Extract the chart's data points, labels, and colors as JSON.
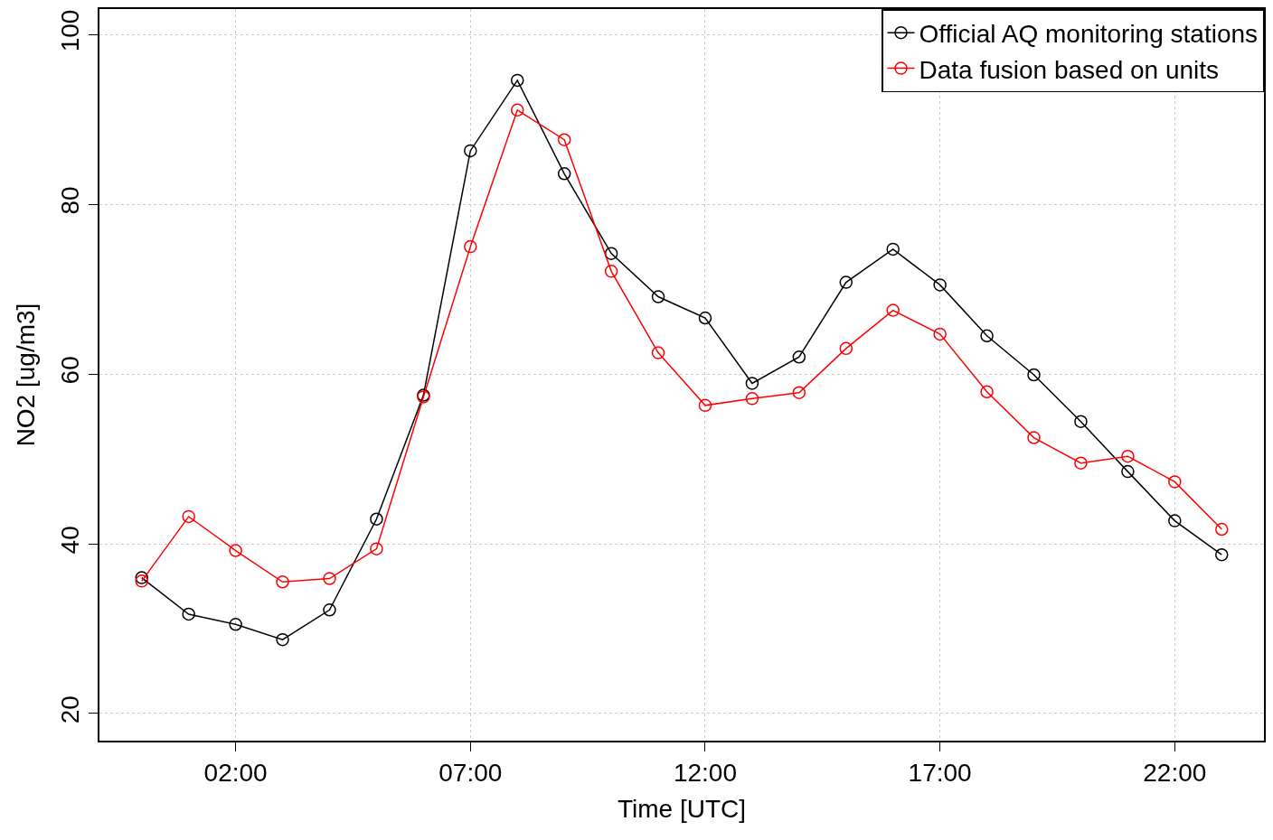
{
  "chart_data": {
    "type": "line",
    "xlabel": "Time [UTC]",
    "ylabel": "NO2 [ug/m3]",
    "x": [
      0,
      1,
      2,
      3,
      4,
      5,
      6,
      7,
      8,
      9,
      10,
      11,
      12,
      13,
      14,
      15,
      16,
      17,
      18,
      19,
      20,
      21,
      22,
      23
    ],
    "series": [
      {
        "name": "Official AQ monitoring stations",
        "color": "#000000",
        "values": [
          36.0,
          31.7,
          30.5,
          28.7,
          32.2,
          42.9,
          57.5,
          86.3,
          94.6,
          83.6,
          74.2,
          69.1,
          66.6,
          58.9,
          62.0,
          70.8,
          74.7,
          70.5,
          64.5,
          59.9,
          54.4,
          48.5,
          42.7,
          38.7
        ]
      },
      {
        "name": "Data fusion based on units",
        "color": "#ff0000",
        "values": [
          35.6,
          43.2,
          39.2,
          35.5,
          35.9,
          39.4,
          57.3,
          75.0,
          91.1,
          87.6,
          72.1,
          62.5,
          56.3,
          57.1,
          57.8,
          63.0,
          67.5,
          64.7,
          57.9,
          52.5,
          49.5,
          50.3,
          47.3,
          41.7
        ]
      }
    ],
    "xlim": [
      -0.9,
      23.9
    ],
    "ylim": [
      16.8,
      103.0
    ],
    "xticks": [
      {
        "value": 2,
        "label": "02:00"
      },
      {
        "value": 7,
        "label": "07:00"
      },
      {
        "value": 12,
        "label": "12:00"
      },
      {
        "value": 17,
        "label": "17:00"
      },
      {
        "value": 22,
        "label": "22:00"
      }
    ],
    "yticks": [
      20,
      40,
      60,
      80,
      100
    ],
    "grid": true,
    "legend": "top right",
    "marker": "circle",
    "line_style": "solid"
  }
}
